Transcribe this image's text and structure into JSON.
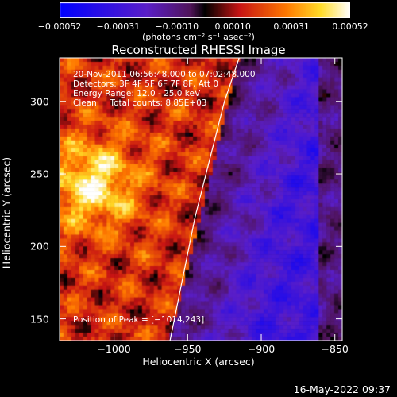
{
  "chart_data": {
    "type": "heatmap",
    "title": "Reconstructed RHESSI Image",
    "xlabel": "Heliocentric X (arcsec)",
    "ylabel": "Heliocentric Y (arcsec)",
    "xlim": [
      -1037,
      -845
    ],
    "ylim": [
      135,
      330
    ],
    "xticks": [
      -1000,
      -950,
      -900,
      -850
    ],
    "xtick_labels": [
      "−1000",
      "−950",
      "−900",
      "−850"
    ],
    "yticks": [
      150,
      200,
      250,
      300
    ],
    "ytick_labels": [
      "150",
      "200",
      "250",
      "300"
    ],
    "colorbar": {
      "range": [
        -0.00052,
        0.00052
      ],
      "ticks": [
        -0.00052,
        -0.00031,
        -0.0001,
        0.0001,
        0.00031,
        0.00052
      ],
      "tick_labels": [
        "−0.00052",
        "−0.00031",
        "−0.00010",
        "0.00010",
        "0.00031",
        "0.00052"
      ],
      "units": "(photons cm⁻² s⁻¹ asec⁻²)"
    },
    "annotations": [
      "20-Nov-2011 06:56:48.000 to 07:02:48.000",
      "Detectors: 3F 4F 5F 6F 7F 8F, Att 0",
      "Energy Range: 12.0 - 25.0 keV",
      "Clean     Total counts: 8.85E+03"
    ],
    "peak_label": "Position of Peak = [−1014,243]",
    "peak": [
      -1014,
      243
    ],
    "limb_curve": {
      "x": [
        -962,
        -953,
        -945,
        -935,
        -925,
        -915
      ],
      "y": [
        135,
        180,
        220,
        260,
        300,
        330
      ]
    }
  },
  "timestamp": "16-May-2022 09:37",
  "colors": {
    "background": "#000000",
    "limb": "#ffffff"
  }
}
